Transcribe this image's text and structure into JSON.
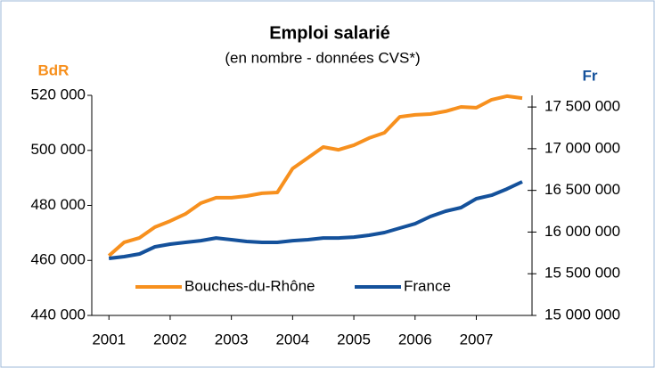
{
  "chart_data": {
    "type": "line",
    "title": "Emploi salarié",
    "subtitle": "(en nombre - données CVS*)",
    "y_label": "BdR",
    "y2_label": "Fr",
    "x": [
      2001,
      2001.25,
      2001.5,
      2001.75,
      2002,
      2002.25,
      2002.5,
      2002.75,
      2003,
      2003.25,
      2003.5,
      2003.75,
      2004,
      2004.25,
      2004.5,
      2004.75,
      2005,
      2005.25,
      2005.5,
      2005.75,
      2006,
      2006.25,
      2006.5,
      2006.75,
      2007,
      2007.25,
      2007.5,
      2007.75
    ],
    "xlim": [
      2000.72,
      2007.91
    ],
    "xticks": [
      2001,
      2002,
      2003,
      2004,
      2005,
      2006,
      2007
    ],
    "ylim": [
      440000,
      520000
    ],
    "yticks": [
      {
        "value": 440000,
        "label": "440 000"
      },
      {
        "value": 460000,
        "label": "460 000"
      },
      {
        "value": 480000,
        "label": "480 000"
      },
      {
        "value": 500000,
        "label": "500 000"
      },
      {
        "value": 520000,
        "label": "520 000"
      }
    ],
    "y2lim": [
      15000000,
      17640000
    ],
    "y2ticks": [
      {
        "value": 15000000,
        "label": "15 000 000"
      },
      {
        "value": 15500000,
        "label": "15 500 000"
      },
      {
        "value": 16000000,
        "label": "16 000 000"
      },
      {
        "value": 16500000,
        "label": "16 500 000"
      },
      {
        "value": 17000000,
        "label": "17 000 000"
      },
      {
        "value": 17500000,
        "label": "17 500 000"
      }
    ],
    "legend": "bottom",
    "series": [
      {
        "name": "Bouches-du-Rhône",
        "color": "#f7901e",
        "axis": "y",
        "values": [
          461700,
          466600,
          468200,
          472100,
          474300,
          476900,
          480800,
          482800,
          482800,
          483400,
          484400,
          484700,
          493400,
          497300,
          501200,
          500200,
          501900,
          504500,
          506400,
          512200,
          512900,
          513200,
          514200,
          515800,
          515500,
          518400,
          519700,
          519000
        ]
      },
      {
        "name": "France",
        "color": "#14519b",
        "axis": "y2",
        "values": [
          15684000,
          15705000,
          15737000,
          15823000,
          15855000,
          15876000,
          15897000,
          15929000,
          15908000,
          15887000,
          15876000,
          15876000,
          15897000,
          15908000,
          15929000,
          15929000,
          15940000,
          15962000,
          15994000,
          16047000,
          16100000,
          16186000,
          16250000,
          16293000,
          16400000,
          16442000,
          16517000,
          16603000
        ]
      }
    ]
  }
}
